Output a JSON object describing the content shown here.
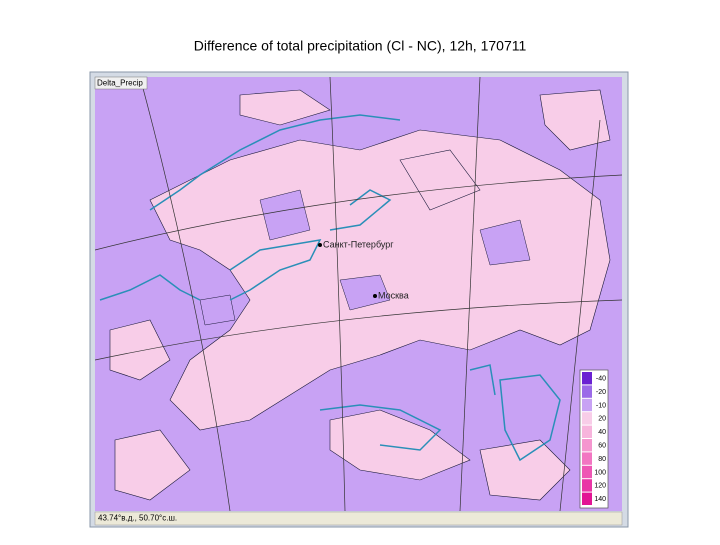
{
  "title": "Difference of total precipitation (Cl - NC), 12h, 170711",
  "window_label": "Delta_Precip",
  "cities": [
    {
      "label": "Санкт-Петербург"
    },
    {
      "label": "Москва"
    }
  ],
  "legend": [
    {
      "label": "-40",
      "color": "#6a22d2"
    },
    {
      "label": "-20",
      "color": "#9b6ae8"
    },
    {
      "label": "-10",
      "color": "#c8a2f4"
    },
    {
      "label": "20",
      "color": "#f8cde8"
    },
    {
      "label": "40",
      "color": "#f7b4dc"
    },
    {
      "label": "60",
      "color": "#f596cf"
    },
    {
      "label": "80",
      "color": "#f276c2"
    },
    {
      "label": "100",
      "color": "#ee56b4"
    },
    {
      "label": "120",
      "color": "#e936a6"
    },
    {
      "label": "140",
      "color": "#e21494"
    }
  ],
  "status": "43.74°в.д., 50.70°с.ш."
}
